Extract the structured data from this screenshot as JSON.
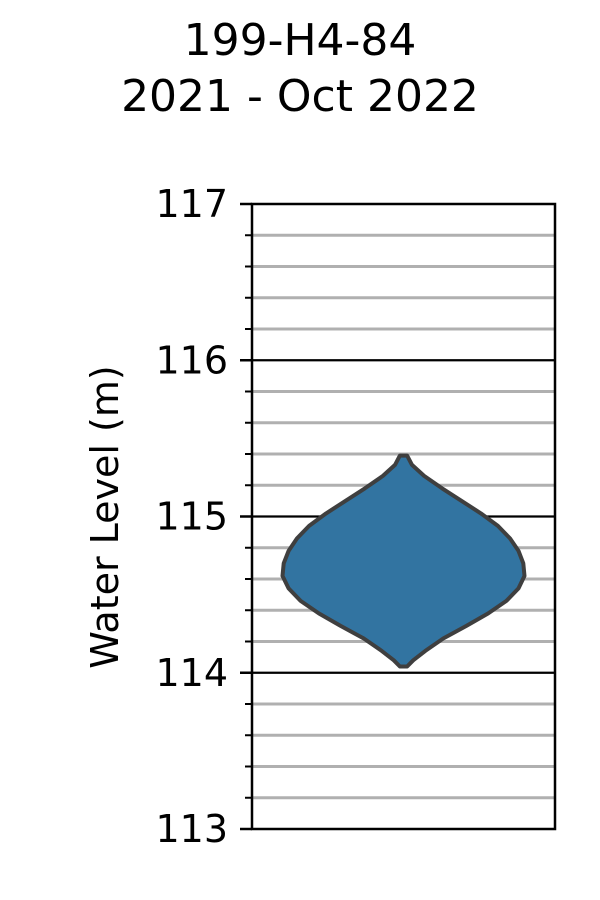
{
  "title": {
    "line1": "199-H4-84",
    "line2": "2021 - Oct 2022"
  },
  "chart_data": {
    "type": "violin",
    "ylabel": "Water Level (m)",
    "ylim": [
      113,
      117
    ],
    "major_ticks": [
      113,
      114,
      115,
      116,
      117
    ],
    "tick_labels": [
      "113",
      "114",
      "115",
      "116",
      "117"
    ],
    "minor_step": 0.2,
    "grid": true,
    "violin": {
      "min": 114.04,
      "max": 115.39,
      "profile": [
        {
          "y": 114.04,
          "w": 0.03
        },
        {
          "y": 114.08,
          "w": 0.08
        },
        {
          "y": 114.14,
          "w": 0.18
        },
        {
          "y": 114.22,
          "w": 0.33
        },
        {
          "y": 114.3,
          "w": 0.52
        },
        {
          "y": 114.38,
          "w": 0.7
        },
        {
          "y": 114.46,
          "w": 0.85
        },
        {
          "y": 114.54,
          "w": 0.95
        },
        {
          "y": 114.62,
          "w": 1.0
        },
        {
          "y": 114.7,
          "w": 0.99
        },
        {
          "y": 114.78,
          "w": 0.95
        },
        {
          "y": 114.86,
          "w": 0.88
        },
        {
          "y": 114.94,
          "w": 0.78
        },
        {
          "y": 115.02,
          "w": 0.64
        },
        {
          "y": 115.1,
          "w": 0.48
        },
        {
          "y": 115.18,
          "w": 0.32
        },
        {
          "y": 115.26,
          "w": 0.17
        },
        {
          "y": 115.33,
          "w": 0.07
        },
        {
          "y": 115.39,
          "w": 0.03
        }
      ]
    },
    "colors": {
      "violin_fill": "#3274a1",
      "violin_edge": "#3f3f3f",
      "minor_grid": "#b0b0b0",
      "major_grid": "#000000"
    }
  }
}
